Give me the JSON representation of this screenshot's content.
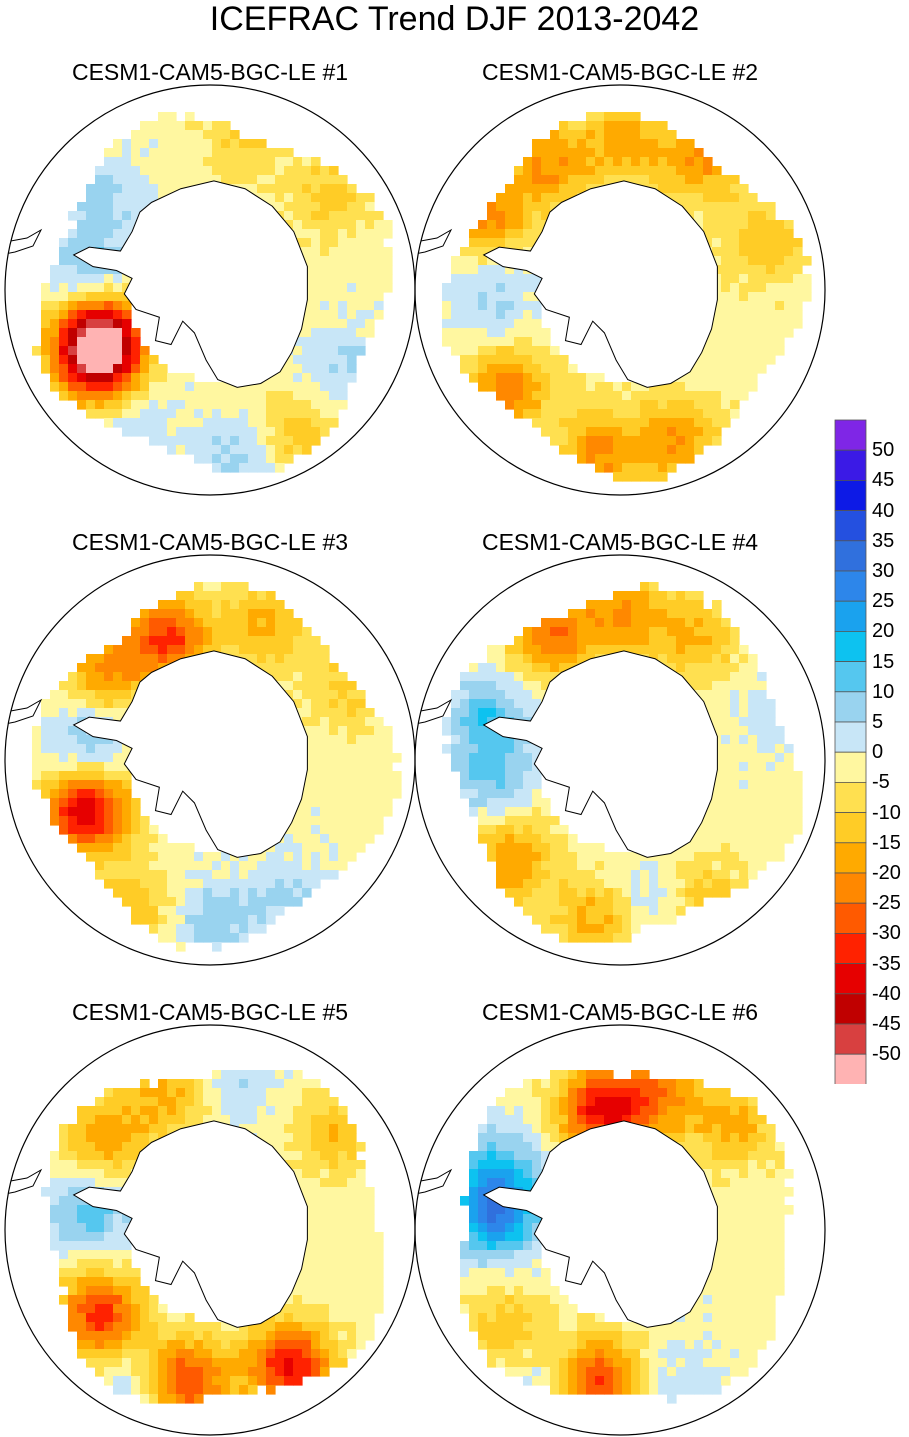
{
  "figure": {
    "title": "ICEFRAC Trend DJF 2013-2042"
  },
  "chart_data": {
    "type": "heatmap",
    "projection": "south-polar-stereographic",
    "variable": "ICEFRAC",
    "season": "DJF",
    "period": "2013-2042",
    "panels": [
      {
        "title": "CESM1-CAM5-BGC-LE #1",
        "blobs": [
          {
            "angle": 200,
            "r": 0.6,
            "value": -42
          },
          {
            "angle": 210,
            "r": 0.66,
            "value": -30
          },
          {
            "angle": 170,
            "r": 0.62,
            "value": 12
          },
          {
            "angle": 140,
            "r": 0.7,
            "value": 8
          },
          {
            "angle": 240,
            "r": 0.78,
            "value": 6
          },
          {
            "angle": 280,
            "r": 0.8,
            "value": 10
          },
          {
            "angle": 300,
            "r": 0.8,
            "value": -12
          },
          {
            "angle": 330,
            "r": 0.72,
            "value": 8
          },
          {
            "angle": 40,
            "r": 0.75,
            "value": -10
          },
          {
            "angle": 80,
            "r": 0.76,
            "value": -8
          }
        ]
      },
      {
        "title": "CESM1-CAM5-BGC-LE #2",
        "blobs": [
          {
            "angle": 150,
            "r": 0.78,
            "value": -20
          },
          {
            "angle": 120,
            "r": 0.74,
            "value": -18
          },
          {
            "angle": 90,
            "r": 0.74,
            "value": -15
          },
          {
            "angle": 60,
            "r": 0.76,
            "value": -18
          },
          {
            "angle": 20,
            "r": 0.74,
            "value": -12
          },
          {
            "angle": 220,
            "r": 0.74,
            "value": -22
          },
          {
            "angle": 260,
            "r": 0.78,
            "value": -20
          },
          {
            "angle": 290,
            "r": 0.76,
            "value": -18
          },
          {
            "angle": 240,
            "r": 0.88,
            "value": 6
          },
          {
            "angle": 180,
            "r": 0.64,
            "value": 8
          }
        ]
      },
      {
        "title": "CESM1-CAM5-BGC-LE #3",
        "blobs": [
          {
            "angle": 200,
            "r": 0.66,
            "value": -38
          },
          {
            "angle": 110,
            "r": 0.66,
            "value": -28
          },
          {
            "angle": 140,
            "r": 0.7,
            "value": -18
          },
          {
            "angle": 170,
            "r": 0.62,
            "value": 12
          },
          {
            "angle": 270,
            "r": 0.76,
            "value": 10
          },
          {
            "angle": 300,
            "r": 0.78,
            "value": 8
          },
          {
            "angle": 240,
            "r": 0.82,
            "value": -12
          },
          {
            "angle": 30,
            "r": 0.76,
            "value": -10
          },
          {
            "angle": 70,
            "r": 0.72,
            "value": -14
          }
        ]
      },
      {
        "title": "CESM1-CAM5-BGC-LE #4",
        "blobs": [
          {
            "angle": 160,
            "r": 0.7,
            "value": 15
          },
          {
            "angle": 185,
            "r": 0.66,
            "value": 12
          },
          {
            "angle": 120,
            "r": 0.72,
            "value": -22
          },
          {
            "angle": 90,
            "r": 0.74,
            "value": -18
          },
          {
            "angle": 60,
            "r": 0.72,
            "value": -14
          },
          {
            "angle": 220,
            "r": 0.72,
            "value": -18
          },
          {
            "angle": 260,
            "r": 0.78,
            "value": -16
          },
          {
            "angle": 300,
            "r": 0.78,
            "value": -12
          },
          {
            "angle": 280,
            "r": 0.7,
            "value": 8
          },
          {
            "angle": 20,
            "r": 0.8,
            "value": 6
          }
        ]
      },
      {
        "title": "CESM1-CAM5-BGC-LE #5",
        "blobs": [
          {
            "angle": 215,
            "r": 0.68,
            "value": -30
          },
          {
            "angle": 260,
            "r": 0.72,
            "value": -28
          },
          {
            "angle": 300,
            "r": 0.74,
            "value": -34
          },
          {
            "angle": 170,
            "r": 0.62,
            "value": 14
          },
          {
            "angle": 140,
            "r": 0.72,
            "value": -16
          },
          {
            "angle": 110,
            "r": 0.72,
            "value": -14
          },
          {
            "angle": 80,
            "r": 0.76,
            "value": 6
          },
          {
            "angle": 40,
            "r": 0.76,
            "value": -12
          },
          {
            "angle": 240,
            "r": 0.86,
            "value": 6
          }
        ]
      },
      {
        "title": "CESM1-CAM5-BGC-LE #6",
        "blobs": [
          {
            "angle": 170,
            "r": 0.64,
            "value": 30
          },
          {
            "angle": 150,
            "r": 0.7,
            "value": 12
          },
          {
            "angle": 100,
            "r": 0.62,
            "value": -34
          },
          {
            "angle": 75,
            "r": 0.72,
            "value": -20
          },
          {
            "angle": 45,
            "r": 0.76,
            "value": -14
          },
          {
            "angle": 260,
            "r": 0.72,
            "value": -28
          },
          {
            "angle": 220,
            "r": 0.74,
            "value": -12
          },
          {
            "angle": 240,
            "r": 0.86,
            "value": 8
          },
          {
            "angle": 290,
            "r": 0.8,
            "value": 6
          }
        ]
      }
    ],
    "colorbar": {
      "levels": [
        "50",
        "45",
        "40",
        "35",
        "30",
        "25",
        "20",
        "15",
        "10",
        "5",
        "0",
        "-5",
        "-10",
        "-15",
        "-20",
        "-25",
        "-30",
        "-35",
        "-40",
        "-45",
        "-50"
      ],
      "colors": [
        "#7f26e6",
        "#3b1ae6",
        "#0d1ae6",
        "#2450e0",
        "#3070dd",
        "#2d86ea",
        "#1aa2ee",
        "#0dc2f0",
        "#55c7ef",
        "#99d3ef",
        "#c8e6f7",
        "#fff7a0",
        "#ffe050",
        "#ffcc26",
        "#ffaa00",
        "#ff8800",
        "#ff5a00",
        "#ff2200",
        "#e60000",
        "#c00000",
        "#d84040",
        "#ffb3b3"
      ]
    }
  }
}
